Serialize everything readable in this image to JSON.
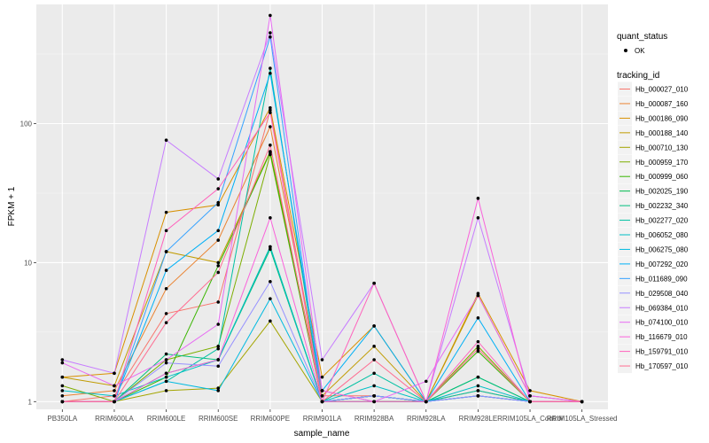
{
  "chart_data": {
    "type": "line",
    "xlabel": "sample_name",
    "ylabel": "FPKM + 1",
    "y_scale": "log10",
    "ylim": [
      0.88,
      720
    ],
    "y_ticks": [
      {
        "value": 1,
        "label": "1"
      },
      {
        "value": 10,
        "label": "10"
      },
      {
        "value": 100,
        "label": "100"
      }
    ],
    "grid": true,
    "background": "#ebebeb",
    "legend_position": "right",
    "categories": [
      "PB350LA",
      "RRIM600LA",
      "RRIM600LE",
      "RRIM600SE",
      "RRIM600PE",
      "RRIM901LA",
      "RRIM928BA",
      "RRIM928LA",
      "RRIM928LE",
      "RRIM105LA_Control",
      "RRIM105LA_Stressed"
    ],
    "legend_shape": {
      "title": "quant_status",
      "entries": [
        "OK"
      ]
    },
    "legend_color_title": "tracking_id",
    "series": [
      {
        "name": "Hb_000027_010",
        "color": "#F8766D",
        "values": [
          1.0,
          1.1,
          4.3,
          5.2,
          125,
          1.1,
          1.1,
          1.0,
          1.1,
          1.0,
          1.0
        ]
      },
      {
        "name": "Hb_000087_160",
        "color": "#EA8331",
        "values": [
          1.1,
          1.2,
          6.5,
          14.5,
          95,
          1.2,
          1.0,
          1.0,
          1.2,
          1.0,
          1.0
        ]
      },
      {
        "name": "Hb_000186_090",
        "color": "#D89000",
        "values": [
          1.5,
          1.6,
          23,
          26,
          130,
          1.5,
          3.5,
          1.0,
          6.0,
          1.2,
          1.0
        ]
      },
      {
        "name": "Hb_000188_140",
        "color": "#C09B00",
        "values": [
          1.5,
          1.3,
          12,
          10,
          63,
          1.1,
          2.5,
          1.0,
          5.8,
          1.1,
          1.0
        ]
      },
      {
        "name": "Hb_000710_130",
        "color": "#A3A500",
        "values": [
          1.0,
          1.0,
          1.2,
          1.25,
          3.8,
          1.0,
          1.0,
          1.0,
          1.1,
          1.0,
          1.0
        ]
      },
      {
        "name": "Hb_000959_170",
        "color": "#7CAE00",
        "values": [
          1.3,
          1.0,
          2.0,
          2.5,
          60,
          1.0,
          1.1,
          1.0,
          2.5,
          1.0,
          1.0
        ]
      },
      {
        "name": "Hb_000999_060",
        "color": "#39B600",
        "values": [
          1.0,
          1.0,
          1.5,
          9.5,
          62,
          1.0,
          1.1,
          1.0,
          2.3,
          1.0,
          1.0
        ]
      },
      {
        "name": "Hb_002025_190",
        "color": "#00BB4E",
        "values": [
          1.0,
          1.0,
          1.6,
          2.0,
          13,
          1.0,
          1.0,
          1.0,
          1.5,
          1.0,
          1.0
        ]
      },
      {
        "name": "Hb_002232_340",
        "color": "#00BF7D",
        "values": [
          1.0,
          1.0,
          2.2,
          2.0,
          12.5,
          1.0,
          1.1,
          1.0,
          1.5,
          1.0,
          1.0
        ]
      },
      {
        "name": "Hb_002277_020",
        "color": "#00C1A3",
        "values": [
          1.0,
          1.0,
          1.4,
          2.4,
          250,
          1.0,
          1.6,
          1.0,
          1.2,
          1.0,
          1.0
        ]
      },
      {
        "name": "Hb_006052_080",
        "color": "#00BFC4",
        "values": [
          1.2,
          1.1,
          1.5,
          2.0,
          13,
          1.0,
          1.3,
          1.0,
          1.3,
          1.0,
          1.0
        ]
      },
      {
        "name": "Hb_006275_080",
        "color": "#00BAE0",
        "values": [
          1.0,
          1.0,
          1.4,
          1.2,
          5.5,
          1.0,
          1.1,
          1.0,
          1.1,
          1.0,
          1.0
        ]
      },
      {
        "name": "Hb_007292_020",
        "color": "#00B0F6",
        "values": [
          1.0,
          1.0,
          8.8,
          17,
          230,
          1.2,
          3.5,
          1.0,
          4.0,
          1.0,
          1.0
        ]
      },
      {
        "name": "Hb_011689_090",
        "color": "#35A2FF",
        "values": [
          1.0,
          1.0,
          12,
          27,
          420,
          1.0,
          1.1,
          1.0,
          1.1,
          1.0,
          1.0
        ]
      },
      {
        "name": "Hb_029508_040",
        "color": "#9590FF",
        "values": [
          1.0,
          1.0,
          1.9,
          1.8,
          7.3,
          1.0,
          1.1,
          1.0,
          1.1,
          1.0,
          1.0
        ]
      },
      {
        "name": "Hb_069384_010",
        "color": "#C77CFF",
        "values": [
          2.0,
          1.6,
          76,
          40,
          450,
          2.0,
          7.1,
          1.0,
          21,
          1.1,
          1.0
        ]
      },
      {
        "name": "Hb_074100_010",
        "color": "#E76BF3",
        "values": [
          1.9,
          1.3,
          2.0,
          3.6,
          600,
          1.2,
          1.0,
          1.4,
          5.8,
          1.1,
          1.0
        ]
      },
      {
        "name": "Hb_116679_010",
        "color": "#FA62DB",
        "values": [
          1.0,
          1.0,
          1.6,
          2.0,
          21,
          1.0,
          1.0,
          1.0,
          29,
          1.0,
          1.0
        ]
      },
      {
        "name": "Hb_159791_010",
        "color": "#FF62BC",
        "values": [
          1.0,
          1.0,
          17,
          34,
          120,
          1.0,
          7.1,
          1.0,
          2.7,
          1.0,
          1.0
        ]
      },
      {
        "name": "Hb_170597_010",
        "color": "#FF6C91",
        "values": [
          1.0,
          1.0,
          3.7,
          8.5,
          70,
          1.0,
          2.0,
          1.0,
          2.4,
          1.0,
          1.0
        ]
      }
    ]
  }
}
